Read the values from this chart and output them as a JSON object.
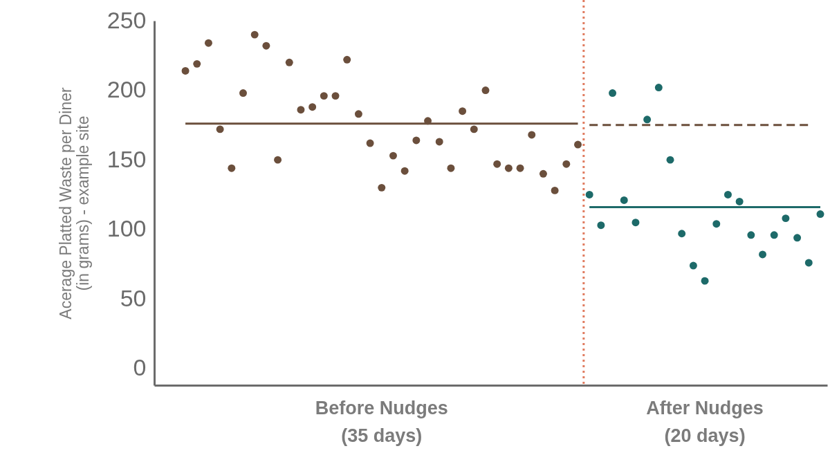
{
  "chart_data": {
    "type": "scatter",
    "ylabel": "Acerage Platted Waste per Diner\n(in grams) - example site",
    "categories": [
      null,
      null,
      null,
      null,
      null,
      null,
      null,
      null,
      null,
      null,
      null,
      null,
      null,
      null,
      null,
      null,
      null,
      null,
      null,
      null,
      null,
      null,
      null,
      null,
      null,
      null,
      null,
      null,
      null,
      null,
      null,
      null,
      null,
      null,
      null,
      null,
      null,
      null,
      null,
      null,
      null,
      null,
      null,
      null,
      null,
      null,
      null,
      null,
      null,
      null,
      null,
      null,
      null,
      null,
      null,
      null
    ],
    "annotations": [
      "Before Nudges\n(35 days)",
      "After Nudges\n(20 days)"
    ],
    "ylim": [
      -12,
      250
    ],
    "yticks": [
      0,
      50,
      100,
      150,
      200,
      250
    ],
    "grid": false,
    "series": [
      {
        "color": "#6b4f3c",
        "marker": "circle",
        "values": [
          214,
          219,
          234,
          172,
          144,
          198,
          240,
          232,
          150,
          220,
          186,
          188,
          196,
          196,
          222,
          183,
          162,
          130,
          153,
          142,
          164,
          178,
          163,
          144,
          185,
          172,
          200,
          147,
          144,
          144,
          168,
          140,
          128,
          147,
          161,
          null,
          null,
          null,
          null,
          null,
          null,
          null,
          null,
          null,
          null,
          null,
          null,
          null,
          null,
          null,
          null,
          null,
          null,
          null,
          null,
          null
        ]
      },
      {
        "color": "#1d6a69",
        "marker": "circle",
        "values": [
          null,
          null,
          null,
          null,
          null,
          null,
          null,
          null,
          null,
          null,
          null,
          null,
          null,
          null,
          null,
          null,
          null,
          null,
          null,
          null,
          null,
          null,
          null,
          null,
          null,
          null,
          null,
          null,
          null,
          null,
          null,
          null,
          null,
          null,
          null,
          125,
          103,
          198,
          121,
          105,
          179,
          202,
          150,
          97,
          74,
          63,
          104,
          125,
          120,
          96,
          82,
          96,
          108,
          94,
          76,
          111
        ]
      },
      {
        "type": "line",
        "color": "#6b4f3c",
        "line_style": "solid",
        "marker": "none",
        "values": [
          176,
          176,
          176,
          176,
          176,
          176,
          176,
          176,
          176,
          176,
          176,
          176,
          176,
          176,
          176,
          176,
          176,
          176,
          176,
          176,
          176,
          176,
          176,
          176,
          176,
          176,
          176,
          176,
          176,
          176,
          176,
          176,
          176,
          176,
          176,
          null,
          null,
          null,
          null,
          null,
          null,
          null,
          null,
          null,
          null,
          null,
          null,
          null,
          null,
          null,
          null,
          null,
          null,
          null,
          null,
          null
        ]
      },
      {
        "type": "line",
        "color": "#6b4f3c",
        "line_style": "dashed",
        "marker": "none",
        "values": [
          null,
          null,
          null,
          null,
          null,
          null,
          null,
          null,
          null,
          null,
          null,
          null,
          null,
          null,
          null,
          null,
          null,
          null,
          null,
          null,
          null,
          null,
          null,
          null,
          null,
          null,
          null,
          null,
          null,
          null,
          null,
          null,
          null,
          null,
          null,
          175,
          175,
          175,
          175,
          175,
          175,
          175,
          175,
          175,
          175,
          175,
          175,
          175,
          175,
          175,
          175,
          175,
          175,
          175,
          175,
          null
        ]
      },
      {
        "type": "line",
        "color": "#1d6a69",
        "line_style": "solid",
        "marker": "none",
        "values": [
          null,
          null,
          null,
          null,
          null,
          null,
          null,
          null,
          null,
          null,
          null,
          null,
          null,
          null,
          null,
          null,
          null,
          null,
          null,
          null,
          null,
          null,
          null,
          null,
          null,
          null,
          null,
          null,
          null,
          null,
          null,
          null,
          null,
          null,
          null,
          116,
          116,
          116,
          116,
          116,
          116,
          116,
          116,
          116,
          116,
          116,
          116,
          116,
          116,
          116,
          116,
          116,
          116,
          116,
          116,
          116
        ]
      }
    ]
  }
}
